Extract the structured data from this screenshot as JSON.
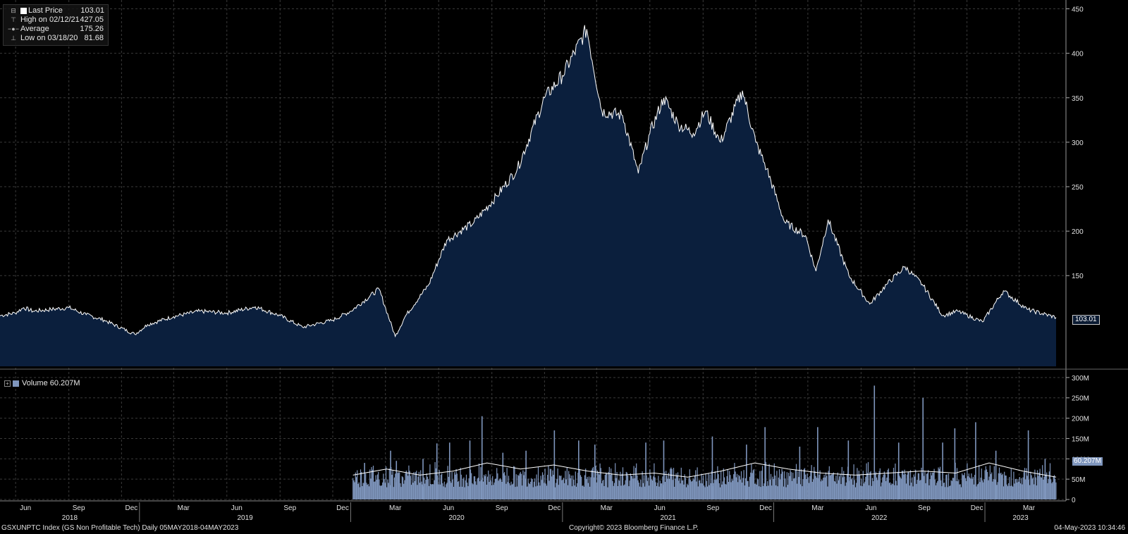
{
  "legend": {
    "rows": [
      {
        "label": "Last Price",
        "value": "103.01"
      },
      {
        "label": "High on 02/12/21",
        "value": "427.05"
      },
      {
        "label": "Average",
        "value": "175.26"
      },
      {
        "label": "Low on 03/18/20",
        "value": "81.68"
      }
    ]
  },
  "volume_legend": {
    "label": "Volume 60.207M"
  },
  "price_tag": "103.01",
  "volume_tag": "60.207M",
  "footer": {
    "left": "GSXUNPTC Index (GS Non Profitable Tech)  Daily 05MAY2018-04MAY2023",
    "center": "Copyright© 2023 Bloomberg Finance L.P.",
    "right": "04-May-2023 10:34:46"
  },
  "colors": {
    "background": "#000000",
    "area_fill": "#0b1f3d",
    "price_line": "#ffffff",
    "volume_bar": "#7f96bd",
    "grid": "#3a3a3a"
  },
  "chart_data": [
    {
      "type": "area",
      "yticks": [
        450,
        400,
        350,
        300,
        250,
        200,
        150
      ],
      "ylim": [
        48,
        452
      ],
      "x_month_labels": [
        "Jun",
        "Sep",
        "Dec",
        "Mar",
        "Jun",
        "Sep",
        "Dec",
        "Mar",
        "Jun",
        "Sep",
        "Dec",
        "Mar",
        "Jun",
        "Sep",
        "Dec",
        "Mar",
        "Jun",
        "Sep",
        "Dec",
        "Mar"
      ],
      "x_year_labels": [
        "2018",
        "2019",
        "2020",
        "2021",
        "2022",
        "2023"
      ],
      "x_start": "2018-05-05",
      "x_end": "2023-05-04",
      "grid": true,
      "series": [
        {
          "points": [
            [
              "2018-05-05",
              105
            ],
            [
              "2018-05-31",
              108
            ],
            [
              "2018-06-15",
              114
            ],
            [
              "2018-07-01",
              110
            ],
            [
              "2018-08-01",
              112
            ],
            [
              "2018-09-01",
              114
            ],
            [
              "2018-10-01",
              106
            ],
            [
              "2018-11-01",
              100
            ],
            [
              "2018-12-24",
              84
            ],
            [
              "2019-01-15",
              95
            ],
            [
              "2019-03-01",
              104
            ],
            [
              "2019-04-15",
              110
            ],
            [
              "2019-06-01",
              108
            ],
            [
              "2019-07-20",
              115
            ],
            [
              "2019-09-01",
              105
            ],
            [
              "2019-10-10",
              92
            ],
            [
              "2019-12-01",
              100
            ],
            [
              "2020-01-01",
              110
            ],
            [
              "2020-02-19",
              135
            ],
            [
              "2020-03-18",
              81.68
            ],
            [
              "2020-04-05",
              105
            ],
            [
              "2020-05-15",
              140
            ],
            [
              "2020-06-15",
              190
            ],
            [
              "2020-08-01",
              210
            ],
            [
              "2020-09-10",
              240
            ],
            [
              "2020-10-15",
              270
            ],
            [
              "2020-12-01",
              350
            ],
            [
              "2021-01-01",
              375
            ],
            [
              "2021-02-12",
              427.05
            ],
            [
              "2021-03-10",
              335
            ],
            [
              "2021-04-15",
              330
            ],
            [
              "2021-05-12",
              265
            ],
            [
              "2021-06-01",
              310
            ],
            [
              "2021-06-25",
              350
            ],
            [
              "2021-07-20",
              320
            ],
            [
              "2021-08-15",
              310
            ],
            [
              "2021-09-05",
              335
            ],
            [
              "2021-10-01",
              300
            ],
            [
              "2021-11-08",
              358
            ],
            [
              "2021-12-01",
              300
            ],
            [
              "2021-12-20",
              270
            ],
            [
              "2022-01-20",
              210
            ],
            [
              "2022-02-25",
              195
            ],
            [
              "2022-03-15",
              155
            ],
            [
              "2022-04-05",
              213
            ],
            [
              "2022-05-11",
              150
            ],
            [
              "2022-06-16",
              118
            ],
            [
              "2022-07-15",
              140
            ],
            [
              "2022-08-16",
              160
            ],
            [
              "2022-09-15",
              140
            ],
            [
              "2022-10-20",
              105
            ],
            [
              "2022-11-15",
              110
            ],
            [
              "2022-12-28",
              98
            ],
            [
              "2023-02-02",
              133
            ],
            [
              "2023-03-15",
              112
            ],
            [
              "2023-05-04",
              103.01
            ]
          ]
        }
      ]
    },
    {
      "type": "bar",
      "series_name": "Volume",
      "yticks": [
        "300M",
        "250M",
        "200M",
        "150M",
        "100M",
        "50M",
        "0"
      ],
      "ylim": [
        0,
        305
      ],
      "start": "2020-01-05",
      "typical_range_millions": [
        30,
        95
      ],
      "spikes": [
        [
          "2020-01-25",
          90
        ],
        [
          "2020-03-10",
          120
        ],
        [
          "2020-03-20",
          95
        ],
        [
          "2020-05-05",
          100
        ],
        [
          "2020-05-29",
          138
        ],
        [
          "2020-06-20",
          140
        ],
        [
          "2020-07-25",
          145
        ],
        [
          "2020-08-15",
          205
        ],
        [
          "2020-09-20",
          115
        ],
        [
          "2020-10-30",
          120
        ],
        [
          "2020-12-18",
          170
        ],
        [
          "2021-01-29",
          145
        ],
        [
          "2021-02-26",
          135
        ],
        [
          "2021-05-25",
          140
        ],
        [
          "2021-06-25",
          145
        ],
        [
          "2021-09-17",
          155
        ],
        [
          "2021-11-15",
          135
        ],
        [
          "2021-12-17",
          178
        ],
        [
          "2022-02-15",
          130
        ],
        [
          "2022-03-18",
          178
        ],
        [
          "2022-05-10",
          145
        ],
        [
          "2022-06-24",
          280
        ],
        [
          "2022-08-05",
          140
        ],
        [
          "2022-09-16",
          250
        ],
        [
          "2022-10-20",
          140
        ],
        [
          "2022-11-10",
          175
        ],
        [
          "2022-12-16",
          190
        ],
        [
          "2023-01-20",
          120
        ],
        [
          "2023-03-17",
          170
        ],
        [
          "2023-04-15",
          100
        ]
      ],
      "moving_average_millions": [
        60,
        75,
        60,
        70,
        90,
        75,
        85,
        70,
        60,
        65,
        55,
        70,
        90,
        75,
        65,
        60,
        65,
        70,
        65,
        90,
        70,
        55
      ]
    }
  ]
}
